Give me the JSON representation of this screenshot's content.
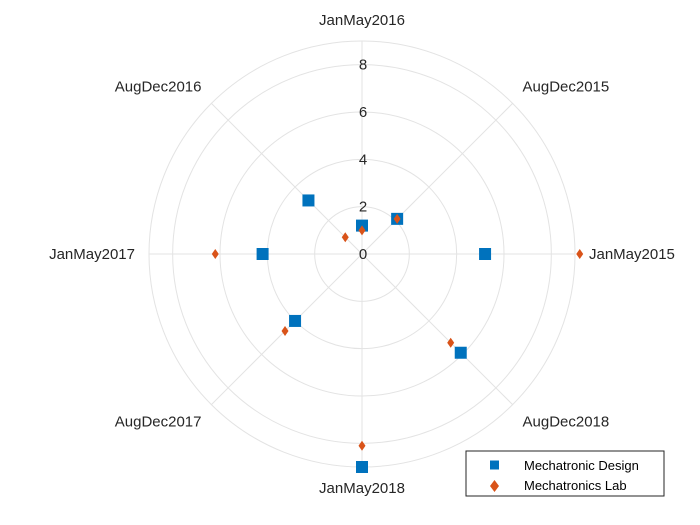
{
  "chart_data": {
    "type": "scatter",
    "subtype": "polar",
    "theta_labels": [
      "JanMay2015",
      "AugDec2015",
      "JanMay2016",
      "AugDec2016",
      "JanMay2017",
      "AugDec2017",
      "JanMay2018",
      "AugDec2018"
    ],
    "r_ticks": [
      "0",
      "2",
      "4",
      "6",
      "8"
    ],
    "rlim": [
      0,
      9
    ],
    "grid": true,
    "legend_position": "bottom-right",
    "series": [
      {
        "name": "Mechatronic Design",
        "marker": "square",
        "color": "#0072BD",
        "values": [
          5.2,
          2.1,
          1.2,
          3.2,
          4.2,
          4.0,
          9.0,
          5.9
        ]
      },
      {
        "name": "Mechatronics Lab",
        "marker": "diamond",
        "color": "#D95319",
        "values": [
          9.2,
          2.1,
          1.0,
          1.0,
          6.2,
          4.6,
          8.1,
          5.3
        ]
      }
    ]
  }
}
